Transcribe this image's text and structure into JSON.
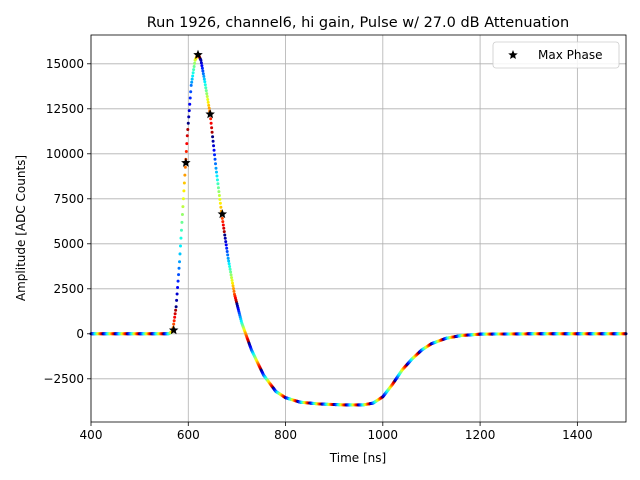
{
  "chart_data": {
    "type": "scatter",
    "title": "Run 1926, channel6, hi gain, Pulse w/ 27.0 dB Attenuation",
    "xlabel": "Time [ns]",
    "ylabel": "Amplitude [ADC Counts]",
    "xlim": [
      400,
      1500
    ],
    "ylim": [
      -4900,
      16600
    ],
    "xticks": [
      400,
      600,
      800,
      1000,
      1200,
      1400
    ],
    "yticks": [
      -2500,
      0,
      2500,
      5000,
      7500,
      10000,
      12500,
      15000
    ],
    "xtick_labels": [
      "400",
      "600",
      "800",
      "1000",
      "1200",
      "1400"
    ],
    "ytick_labels": [
      "−2500",
      "0",
      "2500",
      "5000",
      "7500",
      "10000",
      "12500",
      "15000"
    ],
    "grid": true,
    "legend_position": "top-right",
    "colormap": "jet, cycling per 25 ns phase",
    "pulse_curve": [
      [
        400,
        0
      ],
      [
        560,
        0
      ],
      [
        568,
        150
      ],
      [
        575,
        1500
      ],
      [
        582,
        4000
      ],
      [
        590,
        7500
      ],
      [
        598,
        11000
      ],
      [
        606,
        13800
      ],
      [
        614,
        15200
      ],
      [
        620,
        15550
      ],
      [
        626,
        15200
      ],
      [
        634,
        14000
      ],
      [
        645,
        12200
      ],
      [
        657,
        9200
      ],
      [
        669,
        6600
      ],
      [
        682,
        4200
      ],
      [
        695,
        2200
      ],
      [
        710,
        600
      ],
      [
        730,
        -900
      ],
      [
        755,
        -2300
      ],
      [
        780,
        -3200
      ],
      [
        800,
        -3550
      ],
      [
        830,
        -3800
      ],
      [
        870,
        -3900
      ],
      [
        920,
        -3950
      ],
      [
        960,
        -3950
      ],
      [
        980,
        -3850
      ],
      [
        1000,
        -3500
      ],
      [
        1020,
        -2800
      ],
      [
        1040,
        -2000
      ],
      [
        1060,
        -1400
      ],
      [
        1080,
        -900
      ],
      [
        1100,
        -550
      ],
      [
        1130,
        -250
      ],
      [
        1160,
        -100
      ],
      [
        1200,
        -20
      ],
      [
        1300,
        0
      ],
      [
        1500,
        0
      ]
    ],
    "series": [
      {
        "name": "Max Phase",
        "marker": "star",
        "points": [
          [
            570,
            200
          ],
          [
            595,
            9500
          ],
          [
            620,
            15500
          ],
          [
            645,
            12200
          ],
          [
            670,
            6650
          ]
        ]
      }
    ]
  }
}
